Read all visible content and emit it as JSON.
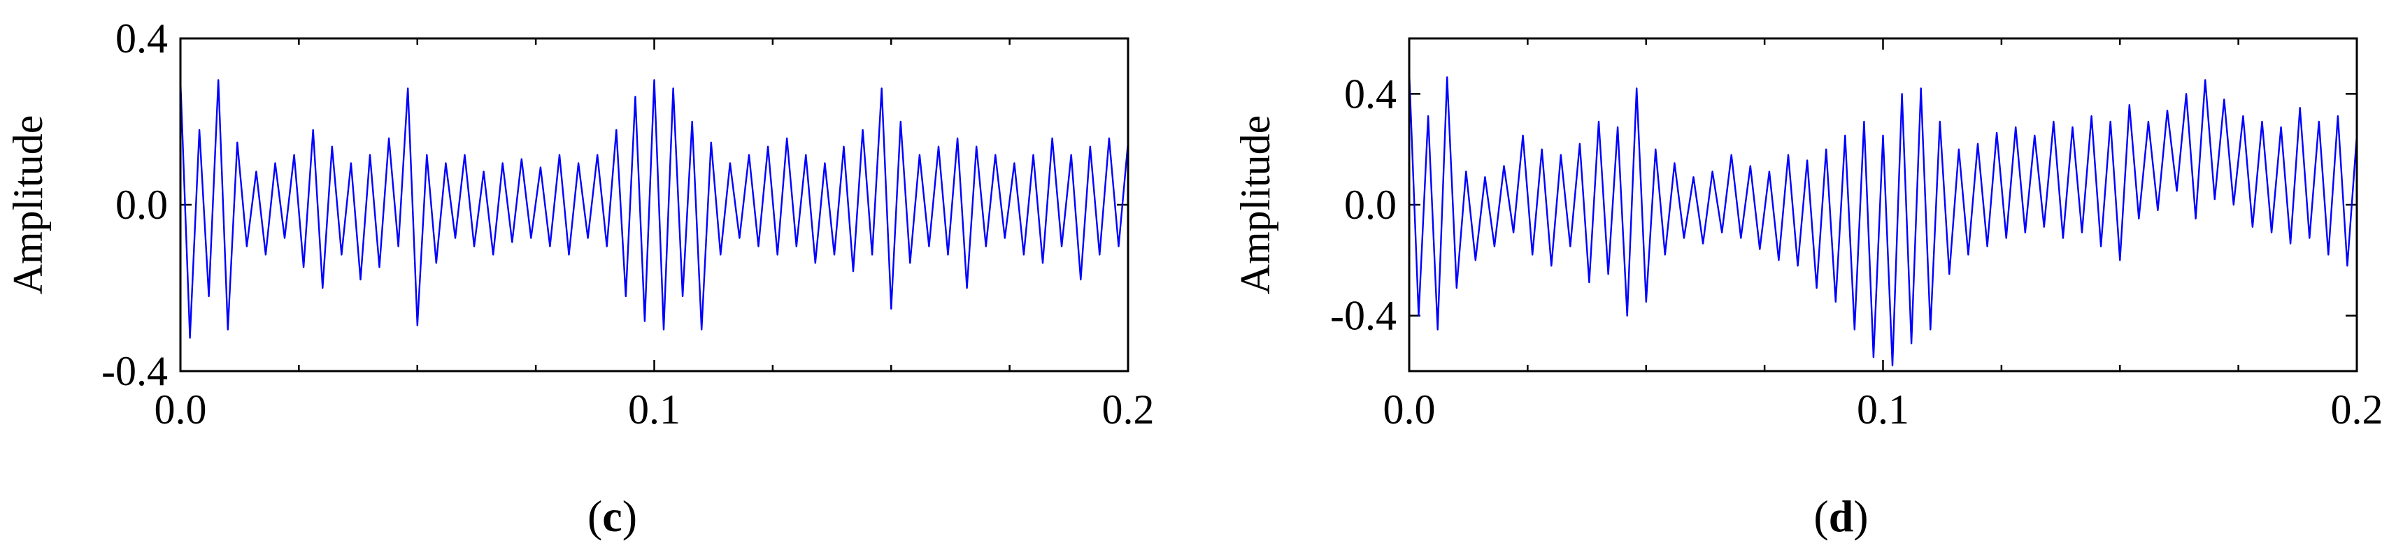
{
  "chart_data": [
    {
      "type": "line",
      "panel_label": "c",
      "xlabel": "",
      "ylabel": "Amplitude",
      "xlim": [
        0.0,
        0.2
      ],
      "ylim": [
        -0.4,
        0.4
      ],
      "x_ticks": [
        0.0,
        0.1,
        0.2
      ],
      "x_tick_labels": [
        "0.0",
        "0.1",
        "0.2"
      ],
      "y_ticks": [
        -0.4,
        0.0,
        0.4
      ],
      "y_tick_labels": [
        "-0.4",
        "0.0",
        "0.4"
      ],
      "grid": false,
      "series": [
        {
          "color": "#0000ff",
          "x": [
            0.0,
            0.002,
            0.004,
            0.006,
            0.008,
            0.01,
            0.012,
            0.014,
            0.016,
            0.018,
            0.02,
            0.022,
            0.024,
            0.026,
            0.028,
            0.03,
            0.032,
            0.034,
            0.036,
            0.038,
            0.04,
            0.042,
            0.044,
            0.046,
            0.048,
            0.05,
            0.052,
            0.054,
            0.056,
            0.058,
            0.06,
            0.062,
            0.064,
            0.066,
            0.068,
            0.07,
            0.072,
            0.074,
            0.076,
            0.078,
            0.08,
            0.082,
            0.084,
            0.086,
            0.088,
            0.09,
            0.092,
            0.094,
            0.096,
            0.098,
            0.1,
            0.102,
            0.104,
            0.106,
            0.108,
            0.11,
            0.112,
            0.114,
            0.116,
            0.118,
            0.12,
            0.122,
            0.124,
            0.126,
            0.128,
            0.13,
            0.132,
            0.134,
            0.136,
            0.138,
            0.14,
            0.142,
            0.144,
            0.146,
            0.148,
            0.15,
            0.152,
            0.154,
            0.156,
            0.158,
            0.16,
            0.162,
            0.164,
            0.166,
            0.168,
            0.17,
            0.172,
            0.174,
            0.176,
            0.178,
            0.18,
            0.182,
            0.184,
            0.186,
            0.188,
            0.19,
            0.192,
            0.194,
            0.196,
            0.198,
            0.2
          ],
          "y": [
            0.3,
            -0.32,
            0.18,
            -0.22,
            0.3,
            -0.3,
            0.15,
            -0.1,
            0.08,
            -0.12,
            0.1,
            -0.08,
            0.12,
            -0.15,
            0.18,
            -0.2,
            0.14,
            -0.12,
            0.1,
            -0.18,
            0.12,
            -0.15,
            0.16,
            -0.1,
            0.28,
            -0.29,
            0.12,
            -0.14,
            0.1,
            -0.08,
            0.12,
            -0.1,
            0.08,
            -0.12,
            0.1,
            -0.09,
            0.11,
            -0.08,
            0.09,
            -0.1,
            0.12,
            -0.12,
            0.1,
            -0.08,
            0.12,
            -0.1,
            0.18,
            -0.22,
            0.26,
            -0.28,
            0.3,
            -0.3,
            0.28,
            -0.22,
            0.2,
            -0.3,
            0.15,
            -0.12,
            0.1,
            -0.08,
            0.12,
            -0.1,
            0.14,
            -0.12,
            0.16,
            -0.1,
            0.12,
            -0.14,
            0.1,
            -0.12,
            0.14,
            -0.16,
            0.18,
            -0.12,
            0.28,
            -0.25,
            0.2,
            -0.14,
            0.12,
            -0.1,
            0.14,
            -0.12,
            0.16,
            -0.2,
            0.14,
            -0.1,
            0.12,
            -0.08,
            0.1,
            -0.12,
            0.12,
            -0.14,
            0.16,
            -0.1,
            0.12,
            -0.18,
            0.14,
            -0.12,
            0.16,
            -0.1,
            0.15
          ]
        }
      ]
    },
    {
      "type": "line",
      "panel_label": "d",
      "xlabel": "",
      "ylabel": "Amplitude",
      "xlim": [
        0.0,
        0.2
      ],
      "ylim": [
        -0.6,
        0.6
      ],
      "x_ticks": [
        0.0,
        0.1,
        0.2
      ],
      "x_tick_labels": [
        "0.0",
        "0.1",
        "0.2"
      ],
      "y_ticks": [
        -0.4,
        0.0,
        0.4
      ],
      "y_tick_labels": [
        "-0.4",
        "0.0",
        "0.4"
      ],
      "grid": false,
      "series": [
        {
          "color": "#0000ff",
          "x": [
            0.0,
            0.002,
            0.004,
            0.006,
            0.008,
            0.01,
            0.012,
            0.014,
            0.016,
            0.018,
            0.02,
            0.022,
            0.024,
            0.026,
            0.028,
            0.03,
            0.032,
            0.034,
            0.036,
            0.038,
            0.04,
            0.042,
            0.044,
            0.046,
            0.048,
            0.05,
            0.052,
            0.054,
            0.056,
            0.058,
            0.06,
            0.062,
            0.064,
            0.066,
            0.068,
            0.07,
            0.072,
            0.074,
            0.076,
            0.078,
            0.08,
            0.082,
            0.084,
            0.086,
            0.088,
            0.09,
            0.092,
            0.094,
            0.096,
            0.098,
            0.1,
            0.102,
            0.104,
            0.106,
            0.108,
            0.11,
            0.112,
            0.114,
            0.116,
            0.118,
            0.12,
            0.122,
            0.124,
            0.126,
            0.128,
            0.13,
            0.132,
            0.134,
            0.136,
            0.138,
            0.14,
            0.142,
            0.144,
            0.146,
            0.148,
            0.15,
            0.152,
            0.154,
            0.156,
            0.158,
            0.16,
            0.162,
            0.164,
            0.166,
            0.168,
            0.17,
            0.172,
            0.174,
            0.176,
            0.178,
            0.18,
            0.182,
            0.184,
            0.186,
            0.188,
            0.19,
            0.192,
            0.194,
            0.196,
            0.198,
            0.2
          ],
          "y": [
            0.48,
            -0.4,
            0.32,
            -0.45,
            0.46,
            -0.3,
            0.12,
            -0.2,
            0.1,
            -0.15,
            0.14,
            -0.1,
            0.25,
            -0.18,
            0.2,
            -0.22,
            0.18,
            -0.15,
            0.22,
            -0.28,
            0.3,
            -0.25,
            0.28,
            -0.4,
            0.42,
            -0.35,
            0.2,
            -0.18,
            0.15,
            -0.12,
            0.1,
            -0.14,
            0.12,
            -0.1,
            0.18,
            -0.12,
            0.14,
            -0.16,
            0.12,
            -0.2,
            0.18,
            -0.22,
            0.16,
            -0.3,
            0.2,
            -0.35,
            0.25,
            -0.45,
            0.3,
            -0.55,
            0.25,
            -0.58,
            0.4,
            -0.5,
            0.42,
            -0.45,
            0.3,
            -0.25,
            0.2,
            -0.18,
            0.22,
            -0.15,
            0.26,
            -0.12,
            0.28,
            -0.1,
            0.25,
            -0.08,
            0.3,
            -0.12,
            0.28,
            -0.1,
            0.32,
            -0.15,
            0.3,
            -0.2,
            0.36,
            -0.05,
            0.3,
            -0.02,
            0.34,
            0.05,
            0.4,
            -0.05,
            0.45,
            0.02,
            0.38,
            0.0,
            0.32,
            -0.08,
            0.3,
            -0.1,
            0.28,
            -0.14,
            0.35,
            -0.12,
            0.3,
            -0.18,
            0.32,
            -0.22,
            0.25
          ]
        }
      ]
    }
  ]
}
